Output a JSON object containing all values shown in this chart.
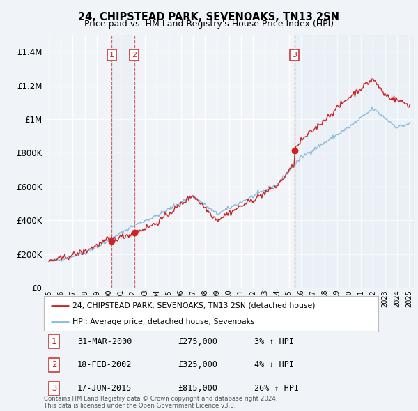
{
  "title": "24, CHIPSTEAD PARK, SEVENOAKS, TN13 2SN",
  "subtitle": "Price paid vs. HM Land Registry's House Price Index (HPI)",
  "ylim": [
    0,
    1500000
  ],
  "yticks": [
    0,
    200000,
    400000,
    600000,
    800000,
    1000000,
    1200000,
    1400000
  ],
  "ytick_labels": [
    "£0",
    "£200K",
    "£400K",
    "£600K",
    "£800K",
    "£1M",
    "£1.2M",
    "£1.4M"
  ],
  "xlim_start": 1994.6,
  "xlim_end": 2025.4,
  "background_color": "#f0f4f8",
  "plot_bg_color": "#f0f4f8",
  "grid_color": "#ffffff",
  "hpi_line_color": "#88bbdd",
  "price_line_color": "#cc2222",
  "sale_events": [
    {
      "year": 2000.25,
      "price": 275000,
      "label": "1"
    },
    {
      "year": 2002.13,
      "price": 325000,
      "label": "2"
    },
    {
      "year": 2015.46,
      "price": 815000,
      "label": "3"
    }
  ],
  "legend_entries": [
    "24, CHIPSTEAD PARK, SEVENOAKS, TN13 2SN (detached house)",
    "HPI: Average price, detached house, Sevenoaks"
  ],
  "table_rows": [
    {
      "num": "1",
      "date": "31-MAR-2000",
      "price": "£275,000",
      "change": "3% ↑ HPI"
    },
    {
      "num": "2",
      "date": "18-FEB-2002",
      "price": "£325,000",
      "change": "4% ↓ HPI"
    },
    {
      "num": "3",
      "date": "17-JUN-2015",
      "price": "£815,000",
      "change": "26% ↑ HPI"
    }
  ],
  "footer": "Contains HM Land Registry data © Crown copyright and database right 2024.\nThis data is licensed under the Open Government Licence v3.0."
}
